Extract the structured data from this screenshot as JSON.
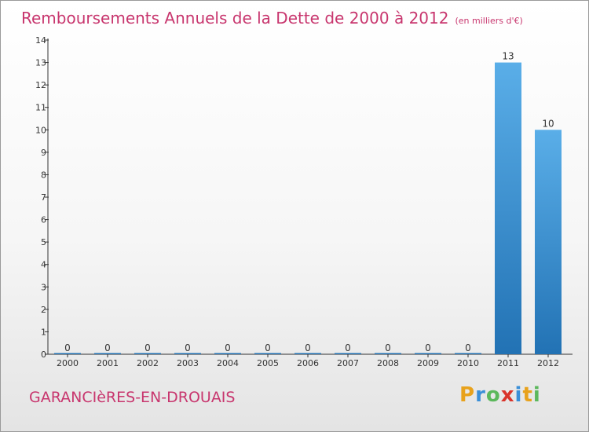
{
  "title": "Remboursements Annuels de la Dette de 2000 à 2012",
  "unit": "(en milliers d'€)",
  "commune": "GARANCIèRES-EN-DROUAIS",
  "brand": {
    "letters": [
      "P",
      "r",
      "o",
      "x",
      "i",
      "t",
      "i"
    ],
    "colors": [
      "#e8a21c",
      "#3a8fd8",
      "#5cb85c",
      "#d9342b",
      "#3a8fd8",
      "#e8a21c",
      "#5cb85c"
    ]
  },
  "colors": {
    "accent": "#c8366e",
    "bar_light": "#5aaee8",
    "bar_dark": "#2272b4",
    "axis": "#333333",
    "text": "#333333"
  },
  "chart_data": {
    "type": "bar",
    "categories": [
      "2000",
      "2001",
      "2002",
      "2003",
      "2004",
      "2005",
      "2006",
      "2007",
      "2008",
      "2009",
      "2010",
      "2011",
      "2012"
    ],
    "values": [
      0,
      0,
      0,
      0,
      0,
      0,
      0,
      0,
      0,
      0,
      0,
      13,
      10
    ],
    "data_labels": [
      "0",
      "0",
      "0",
      "0",
      "0",
      "0",
      "0",
      "0",
      "0",
      "0",
      "0",
      "13",
      "10"
    ],
    "yticks": [
      "0",
      "1",
      "2",
      "3",
      "4",
      "5",
      "6",
      "7",
      "8",
      "9",
      "10",
      "11",
      "12",
      "13",
      "14"
    ],
    "title": "Remboursements Annuels de la Dette de 2000 à 2012",
    "xlabel": "",
    "ylabel": "",
    "ylim": [
      0,
      14
    ],
    "grid": false,
    "legend": "none"
  }
}
